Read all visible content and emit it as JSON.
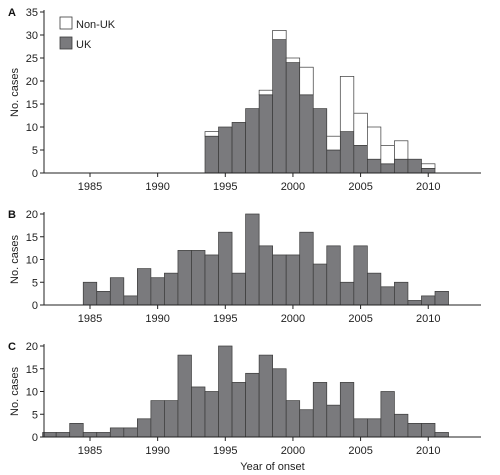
{
  "chart_data": [
    {
      "type": "bar",
      "panel_label": "A",
      "stacked": true,
      "x": [
        1994,
        1995,
        1996,
        1997,
        1998,
        1999,
        2000,
        2001,
        2002,
        2003,
        2004,
        2005,
        2006,
        2007,
        2008,
        2009,
        2010
      ],
      "series": [
        {
          "name": "UK",
          "color": "#7a7a7d",
          "values": [
            8,
            10,
            11,
            14,
            17,
            29,
            24,
            17,
            14,
            5,
            9,
            6,
            3,
            2,
            3,
            3,
            1
          ]
        },
        {
          "name": "Non-UK",
          "color": "#ffffff",
          "values": [
            1,
            0,
            0,
            0,
            1,
            2,
            1,
            6,
            0,
            3,
            12,
            7,
            7,
            4,
            4,
            0,
            1
          ]
        }
      ],
      "ylabel": "No. cases",
      "ylim": [
        0,
        35
      ],
      "yticks": [
        "0",
        "5",
        "10",
        "15",
        "20",
        "25",
        "30",
        "35"
      ],
      "xticks": [
        "1985",
        "1990",
        "1995",
        "2000",
        "2005",
        "2010"
      ],
      "legend": "top-left",
      "grid": false
    },
    {
      "type": "bar",
      "panel_label": "B",
      "x": [
        1985,
        1986,
        1987,
        1988,
        1989,
        1990,
        1991,
        1992,
        1993,
        1994,
        1995,
        1996,
        1997,
        1998,
        1999,
        2000,
        2001,
        2002,
        2003,
        2004,
        2005,
        2006,
        2007,
        2008,
        2009,
        2010,
        2011
      ],
      "series": [
        {
          "color": "#7a7a7d",
          "values": [
            5,
            3,
            6,
            2,
            8,
            6,
            7,
            12,
            12,
            11,
            16,
            7,
            20,
            13,
            11,
            11,
            16,
            9,
            13,
            5,
            13,
            7,
            4,
            5,
            1,
            2,
            3
          ]
        }
      ],
      "ylabel": "No. cases",
      "ylim": [
        0,
        20
      ],
      "yticks": [
        "0",
        "5",
        "10",
        "15",
        "20"
      ],
      "xticks": [
        "1985",
        "1990",
        "1995",
        "2000",
        "2005",
        "2010"
      ],
      "grid": false
    },
    {
      "type": "bar",
      "panel_label": "C",
      "x": [
        1982,
        1983,
        1984,
        1985,
        1986,
        1987,
        1988,
        1989,
        1990,
        1991,
        1992,
        1993,
        1994,
        1995,
        1996,
        1997,
        1998,
        1999,
        2000,
        2001,
        2002,
        2003,
        2004,
        2005,
        2006,
        2007,
        2008,
        2009,
        2010,
        2011
      ],
      "series": [
        {
          "color": "#7a7a7d",
          "values": [
            1,
            1,
            3,
            1,
            1,
            2,
            2,
            4,
            8,
            8,
            18,
            11,
            10,
            20,
            12,
            14,
            18,
            15,
            8,
            6,
            12,
            7,
            12,
            4,
            4,
            10,
            5,
            3,
            3,
            1
          ]
        }
      ],
      "ylabel": "No. cases",
      "xlabel": "Year of onset",
      "ylim": [
        0,
        20
      ],
      "yticks": [
        "0",
        "5",
        "10",
        "15",
        "20"
      ],
      "xticks": [
        "1985",
        "1990",
        "1995",
        "2000",
        "2005",
        "2010"
      ],
      "grid": false
    }
  ]
}
